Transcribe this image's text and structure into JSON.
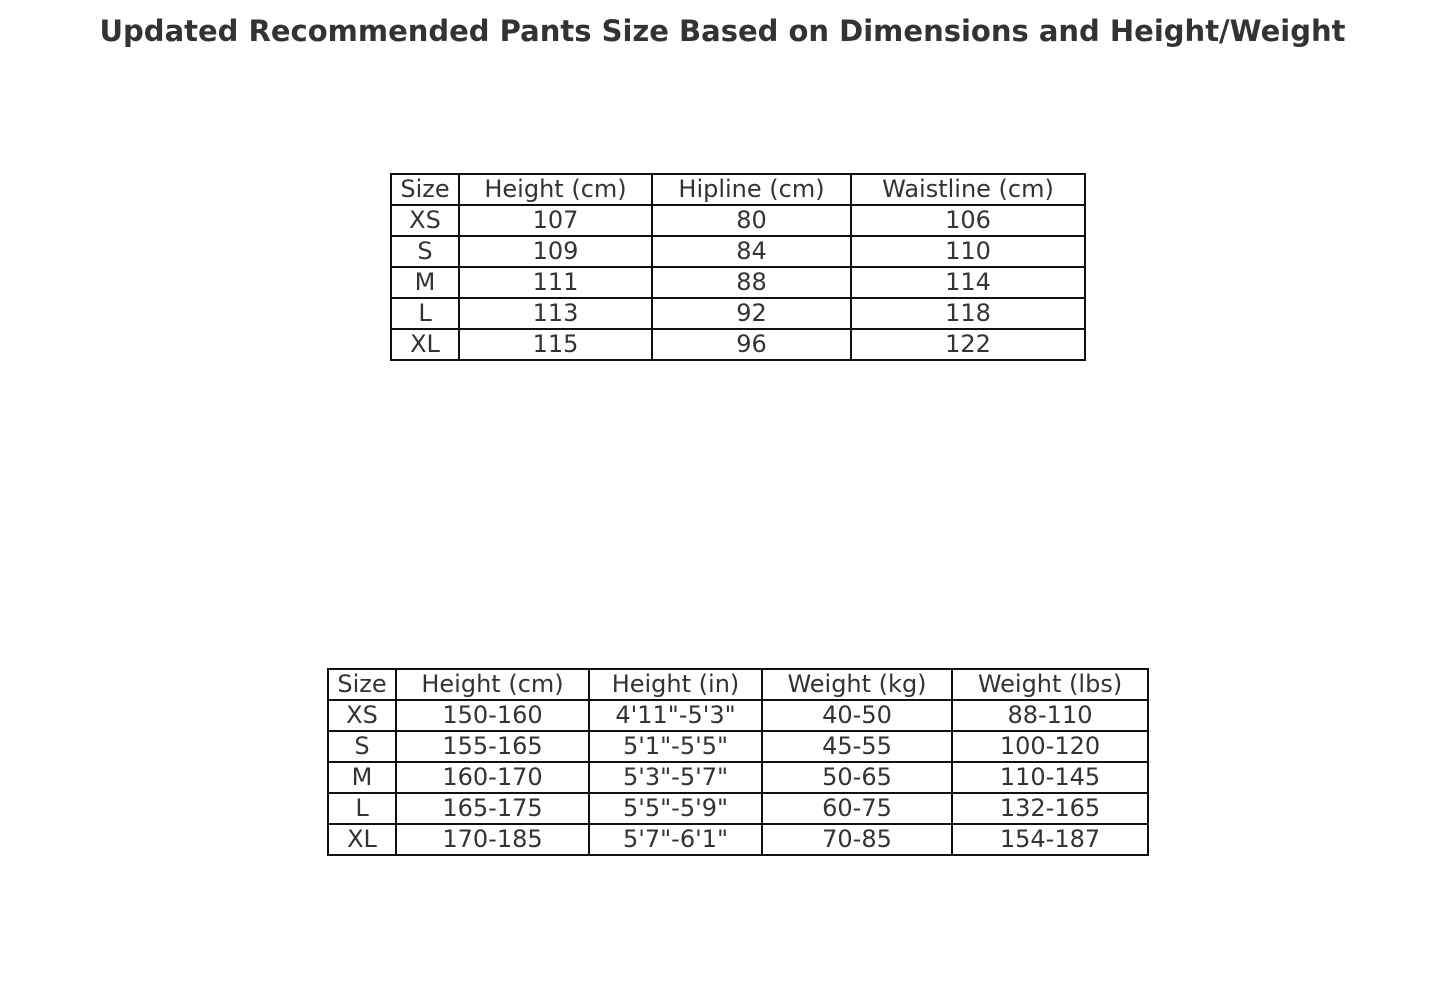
{
  "title": "Updated Recommended Pants Size Based on Dimensions and Height/Weight",
  "chart_data": [
    {
      "type": "table",
      "columns": [
        "Size",
        "Height (cm)",
        "Hipline (cm)",
        "Waistline (cm)"
      ],
      "rows": [
        [
          "XS",
          "107",
          "80",
          "106"
        ],
        [
          "S",
          "109",
          "84",
          "110"
        ],
        [
          "M",
          "111",
          "88",
          "114"
        ],
        [
          "L",
          "113",
          "92",
          "118"
        ],
        [
          "XL",
          "115",
          "96",
          "122"
        ]
      ]
    },
    {
      "type": "table",
      "columns": [
        "Size",
        "Height (cm)",
        "Height (in)",
        "Weight (kg)",
        "Weight (lbs)"
      ],
      "rows": [
        [
          "XS",
          "150-160",
          "4'11\"-5'3\"",
          "40-50",
          "88-110"
        ],
        [
          "S",
          "155-165",
          "5'1\"-5'5\"",
          "45-55",
          "100-120"
        ],
        [
          "M",
          "160-170",
          "5'3\"-5'7\"",
          "50-65",
          "110-145"
        ],
        [
          "L",
          "165-175",
          "5'5\"-5'9\"",
          "60-75",
          "132-165"
        ],
        [
          "XL",
          "170-185",
          "5'7\"-6'1\"",
          "70-85",
          "154-187"
        ]
      ]
    }
  ]
}
